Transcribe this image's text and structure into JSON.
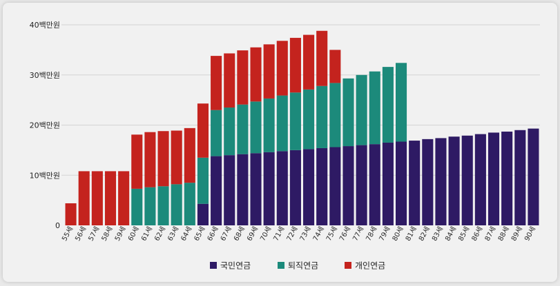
{
  "chart_data": {
    "type": "bar",
    "stacked": true,
    "categories": [
      "55세",
      "56세",
      "57세",
      "58세",
      "59세",
      "60세",
      "61세",
      "62세",
      "63세",
      "64세",
      "65세",
      "66세",
      "67세",
      "68세",
      "69세",
      "70세",
      "71세",
      "72세",
      "73세",
      "74세",
      "75세",
      "76세",
      "77세",
      "78세",
      "79세",
      "80세",
      "81세",
      "82세",
      "83세",
      "84세",
      "85세",
      "86세",
      "87세",
      "88세",
      "89세",
      "90세"
    ],
    "series": [
      {
        "name": "국민연금",
        "color": "#2e1a64",
        "values": [
          0,
          0,
          0,
          0,
          0,
          0,
          0,
          0,
          0,
          0,
          4.3,
          13.8,
          14.0,
          14.2,
          14.4,
          14.6,
          14.8,
          15.0,
          15.2,
          15.4,
          15.6,
          15.8,
          16.0,
          16.2,
          16.5,
          16.7,
          16.9,
          17.2,
          17.4,
          17.7,
          17.9,
          18.2,
          18.5,
          18.7,
          19.0,
          19.3
        ]
      },
      {
        "name": "퇴직연금",
        "color": "#1c8a7b",
        "values": [
          0,
          0,
          0,
          0,
          0,
          7.3,
          7.6,
          7.8,
          8.2,
          8.5,
          9.2,
          9.2,
          9.5,
          9.9,
          10.3,
          10.7,
          11.1,
          11.5,
          11.9,
          12.4,
          12.8,
          13.5,
          14.0,
          14.5,
          15.1,
          15.7,
          0,
          0,
          0,
          0,
          0,
          0,
          0,
          0,
          0,
          0
        ]
      },
      {
        "name": "개인연금",
        "color": "#c4231e",
        "values": [
          4.4,
          10.8,
          10.8,
          10.8,
          10.8,
          10.8,
          11.0,
          11.0,
          10.7,
          10.9,
          10.8,
          10.8,
          10.8,
          10.8,
          10.8,
          10.8,
          10.9,
          10.9,
          10.9,
          11.0,
          6.6,
          0,
          0,
          0,
          0,
          0,
          0,
          0,
          0,
          0,
          0,
          0,
          0,
          0,
          0,
          0
        ]
      }
    ],
    "y_ticks": [
      {
        "value": 0,
        "label": "0"
      },
      {
        "value": 10,
        "label": "10백만원"
      },
      {
        "value": 20,
        "label": "20백만원"
      },
      {
        "value": 30,
        "label": "30백만원"
      },
      {
        "value": 40,
        "label": "40백만원"
      }
    ],
    "ylim": [
      0,
      40
    ],
    "grid": true,
    "legend_position": "bottom"
  }
}
